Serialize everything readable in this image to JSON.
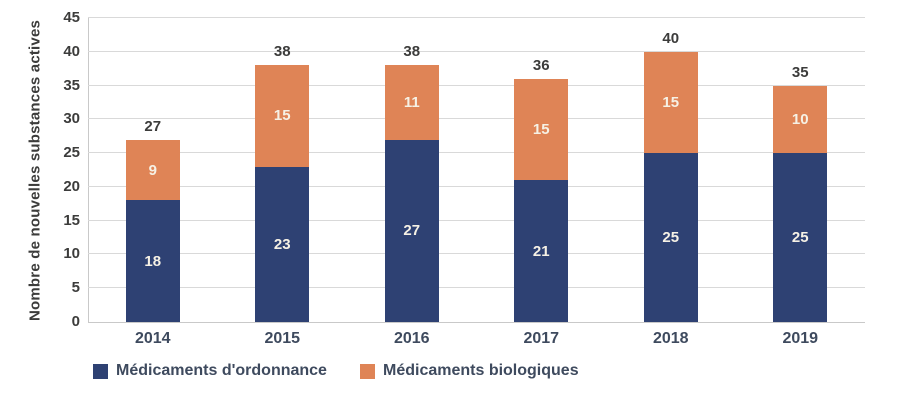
{
  "chart_data": {
    "type": "bar",
    "stacked": true,
    "categories": [
      "2014",
      "2015",
      "2016",
      "2017",
      "2018",
      "2019"
    ],
    "series": [
      {
        "name": "Médicaments d'ordonnance",
        "color": "#2E4173",
        "values": [
          18,
          23,
          27,
          21,
          25,
          25
        ]
      },
      {
        "name": "Médicaments biologiques",
        "color": "#DF8456",
        "values": [
          9,
          15,
          11,
          15,
          15,
          10
        ]
      }
    ],
    "totals": [
      27,
      38,
      38,
      36,
      40,
      35
    ],
    "ylabel": "Nombre de nouvelles substances actives",
    "xlabel": "",
    "ylim": [
      0,
      45
    ],
    "ytick_step": 5,
    "grid": "horizontal",
    "legend_position": "bottom-left",
    "colors": {
      "segment_label": "#F6F1E5",
      "total_label": "#3C3C3B",
      "ytick_text": "#3C3C3B",
      "xtick_text": "#3E4A5E",
      "axis_title_text": "#3C3C3B",
      "legend_text": "#3E4A5E",
      "gridline": "#D9D9D9",
      "axis_line": "#C9C9C9",
      "background": "#FFFFFF"
    }
  }
}
